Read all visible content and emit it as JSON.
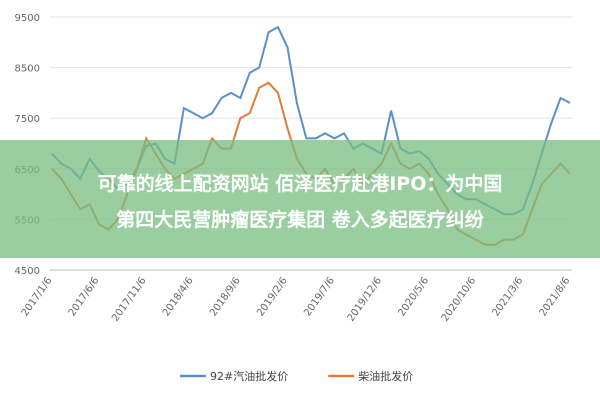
{
  "chart_data": {
    "type": "line",
    "overlay_title": [
      "可靠的线上配资网站 佰泽医疗赴港IPO：为中国",
      "第四大民营肿瘤医疗集团 卷入多起医疗纠纷"
    ],
    "categories": [
      "2017/1/6",
      null,
      null,
      null,
      null,
      "2017/6/6",
      null,
      null,
      null,
      null,
      "2017/11/6",
      null,
      null,
      null,
      null,
      "2018/4/6",
      null,
      null,
      null,
      null,
      "2018/9/6",
      null,
      null,
      null,
      null,
      "2019/2/6",
      null,
      null,
      null,
      null,
      "2019/7/6",
      null,
      null,
      null,
      null,
      "2019/12/6",
      null,
      null,
      null,
      null,
      "2020/5/6",
      null,
      null,
      null,
      null,
      "2020/10/6",
      null,
      null,
      null,
      null,
      "2021/3/6",
      null,
      null,
      null,
      null,
      "2021/8/6"
    ],
    "series": [
      {
        "name": "92#汽油批发价",
        "color": "#5b8fc9",
        "values": [
          6800,
          6600,
          6500,
          6300,
          6700,
          6450,
          6300,
          6100,
          6200,
          6500,
          6950,
          7000,
          6700,
          6600,
          7700,
          7600,
          7500,
          7600,
          7900,
          8000,
          7900,
          8400,
          8500,
          9200,
          9300,
          8900,
          7800,
          7100,
          7100,
          7200,
          7100,
          7200,
          6900,
          7000,
          6900,
          6800,
          7650,
          6900,
          6800,
          6850,
          6700,
          6400,
          6200,
          6000,
          5900,
          5900,
          5800,
          5700,
          5600,
          5600,
          5700,
          6200,
          6800,
          7400,
          7900,
          7800
        ]
      },
      {
        "name": "柴油批发价",
        "color": "#e07b39",
        "values": [
          6500,
          6300,
          6000,
          5700,
          5800,
          5400,
          5300,
          5500,
          6000,
          6500,
          7100,
          6800,
          6500,
          6300,
          6400,
          6500,
          6600,
          7100,
          6900,
          6900,
          7500,
          7600,
          8100,
          8200,
          8000,
          7300,
          6700,
          6400,
          6300,
          6500,
          6200,
          6300,
          6500,
          6200,
          6400,
          6600,
          7000,
          6600,
          6500,
          6600,
          6400,
          6000,
          5700,
          5300,
          5200,
          5100,
          5000,
          5000,
          5100,
          5100,
          5200,
          5700,
          6200,
          6400,
          6600,
          6400
        ]
      }
    ],
    "ylim": [
      4500,
      9500
    ],
    "yticks": [
      4500,
      5500,
      6500,
      7500,
      8500,
      9500
    ],
    "grid": true,
    "legend": "bottom"
  }
}
